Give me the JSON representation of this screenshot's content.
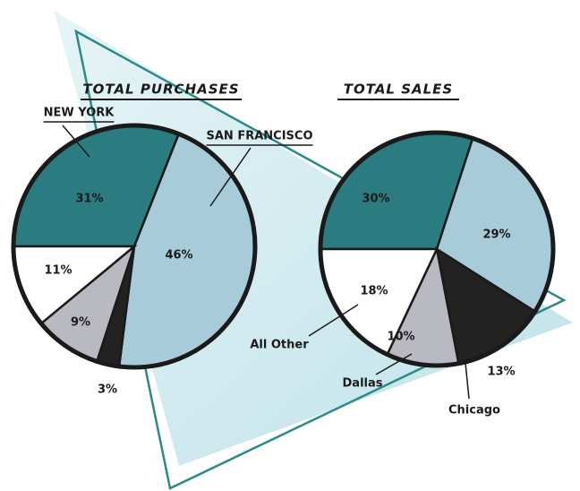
{
  "chart_data": [
    {
      "type": "pie",
      "title": "TOTAL PURCHASES",
      "categories": [
        "NEW YORK",
        "SAN FRANCISCO",
        null,
        null,
        null
      ],
      "values": [
        31,
        46,
        3,
        9,
        11
      ],
      "value_labels": [
        "31%",
        "46%",
        "3%",
        "9%",
        "11%"
      ],
      "colors": [
        "#2b7c80",
        "#a7cbd8",
        "#222222",
        "#b9b9c2",
        "#ffffff"
      ]
    },
    {
      "type": "pie",
      "title": "TOTAL SALES",
      "categories": [
        null,
        null,
        "Chicago",
        "Dallas",
        "All Other"
      ],
      "values": [
        30,
        29,
        13,
        10,
        18
      ],
      "value_labels": [
        "30%",
        "29%",
        "13%",
        "10%",
        "18%"
      ],
      "colors": [
        "#2b7c80",
        "#a7cbd8",
        "#222222",
        "#b9b9c2",
        "#ffffff"
      ]
    }
  ]
}
